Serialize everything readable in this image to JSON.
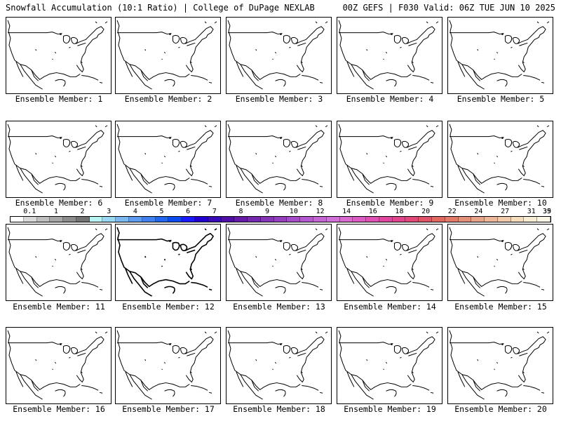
{
  "header": {
    "left": "Snowfall Accumulation (10:1 Ratio) | College of DuPage NEXLAB",
    "right": "00Z GEFS | F030 Valid: 06Z TUE JUN 10 2025"
  },
  "panels": [
    "Ensemble Member: 1",
    "Ensemble Member: 2",
    "Ensemble Member: 3",
    "Ensemble Member: 4",
    "Ensemble Member: 5",
    "Ensemble Member: 6",
    "Ensemble Member: 7",
    "Ensemble Member: 8",
    "Ensemble Member: 9",
    "Ensemble Member: 10",
    "Ensemble Member: 11",
    "Ensemble Member: 12",
    "Ensemble Member: 13",
    "Ensemble Member: 14",
    "Ensemble Member: 15",
    "Ensemble Member: 16",
    "Ensemble Member: 17",
    "Ensemble Member: 18",
    "Ensemble Member: 19",
    "Ensemble Member: 20"
  ],
  "colorbar": {
    "labels": [
      "0.1",
      "1",
      "2",
      "3",
      "4",
      "5",
      "6",
      "7",
      "8",
      "9",
      "10",
      "12",
      "14",
      "16",
      "18",
      "20",
      "22",
      "24",
      "27",
      "31",
      "35",
      "39"
    ],
    "colors": [
      "#ffffff",
      "#d9d9d9",
      "#bfbfbf",
      "#a6a6a6",
      "#8c8c8c",
      "#737373",
      "#b9f2f2",
      "#9ad7f2",
      "#7cb9f0",
      "#5e9bee",
      "#4080f0",
      "#2266f0",
      "#0a4cf0",
      "#1a1aff",
      "#2200d0",
      "#3a0ab8",
      "#5010a8",
      "#651aa8",
      "#7628b0",
      "#8634b8",
      "#9640c0",
      "#a64cc8",
      "#b658d0",
      "#c466d4",
      "#d070d8",
      "#d86ad0",
      "#dc5cc4",
      "#e050b4",
      "#e046a0",
      "#e0448c",
      "#e04878",
      "#e05468",
      "#e0685e",
      "#e27c68",
      "#e49078",
      "#e8a488",
      "#ecb898",
      "#f0caaa",
      "#f4dcbc",
      "#f8ecd2",
      "#fcf6e8"
    ]
  }
}
